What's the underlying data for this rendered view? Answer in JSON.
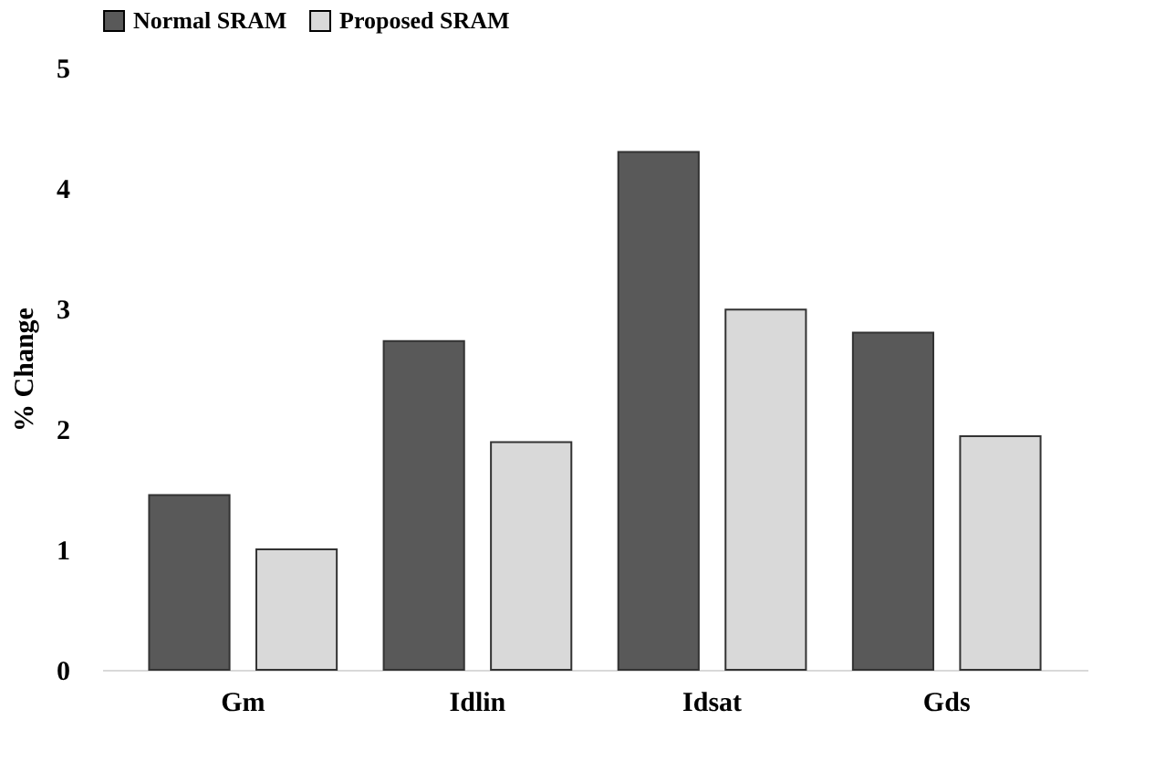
{
  "chart_data": {
    "type": "bar",
    "ylabel": "% Change",
    "categories": [
      "Gm",
      "Idlin",
      "Idsat",
      "Gds"
    ],
    "series": [
      {
        "name": "Normal SRAM",
        "color": "#595959",
        "values": [
          1.45,
          2.73,
          4.3,
          2.8
        ]
      },
      {
        "name": "Proposed SRAM",
        "color": "#d9d9d9",
        "values": [
          1.0,
          1.89,
          2.99,
          1.94
        ]
      }
    ],
    "ylim": [
      0,
      5
    ],
    "yticks": [
      0,
      1,
      2,
      3,
      4,
      5
    ],
    "grid": false,
    "legend": "top"
  }
}
